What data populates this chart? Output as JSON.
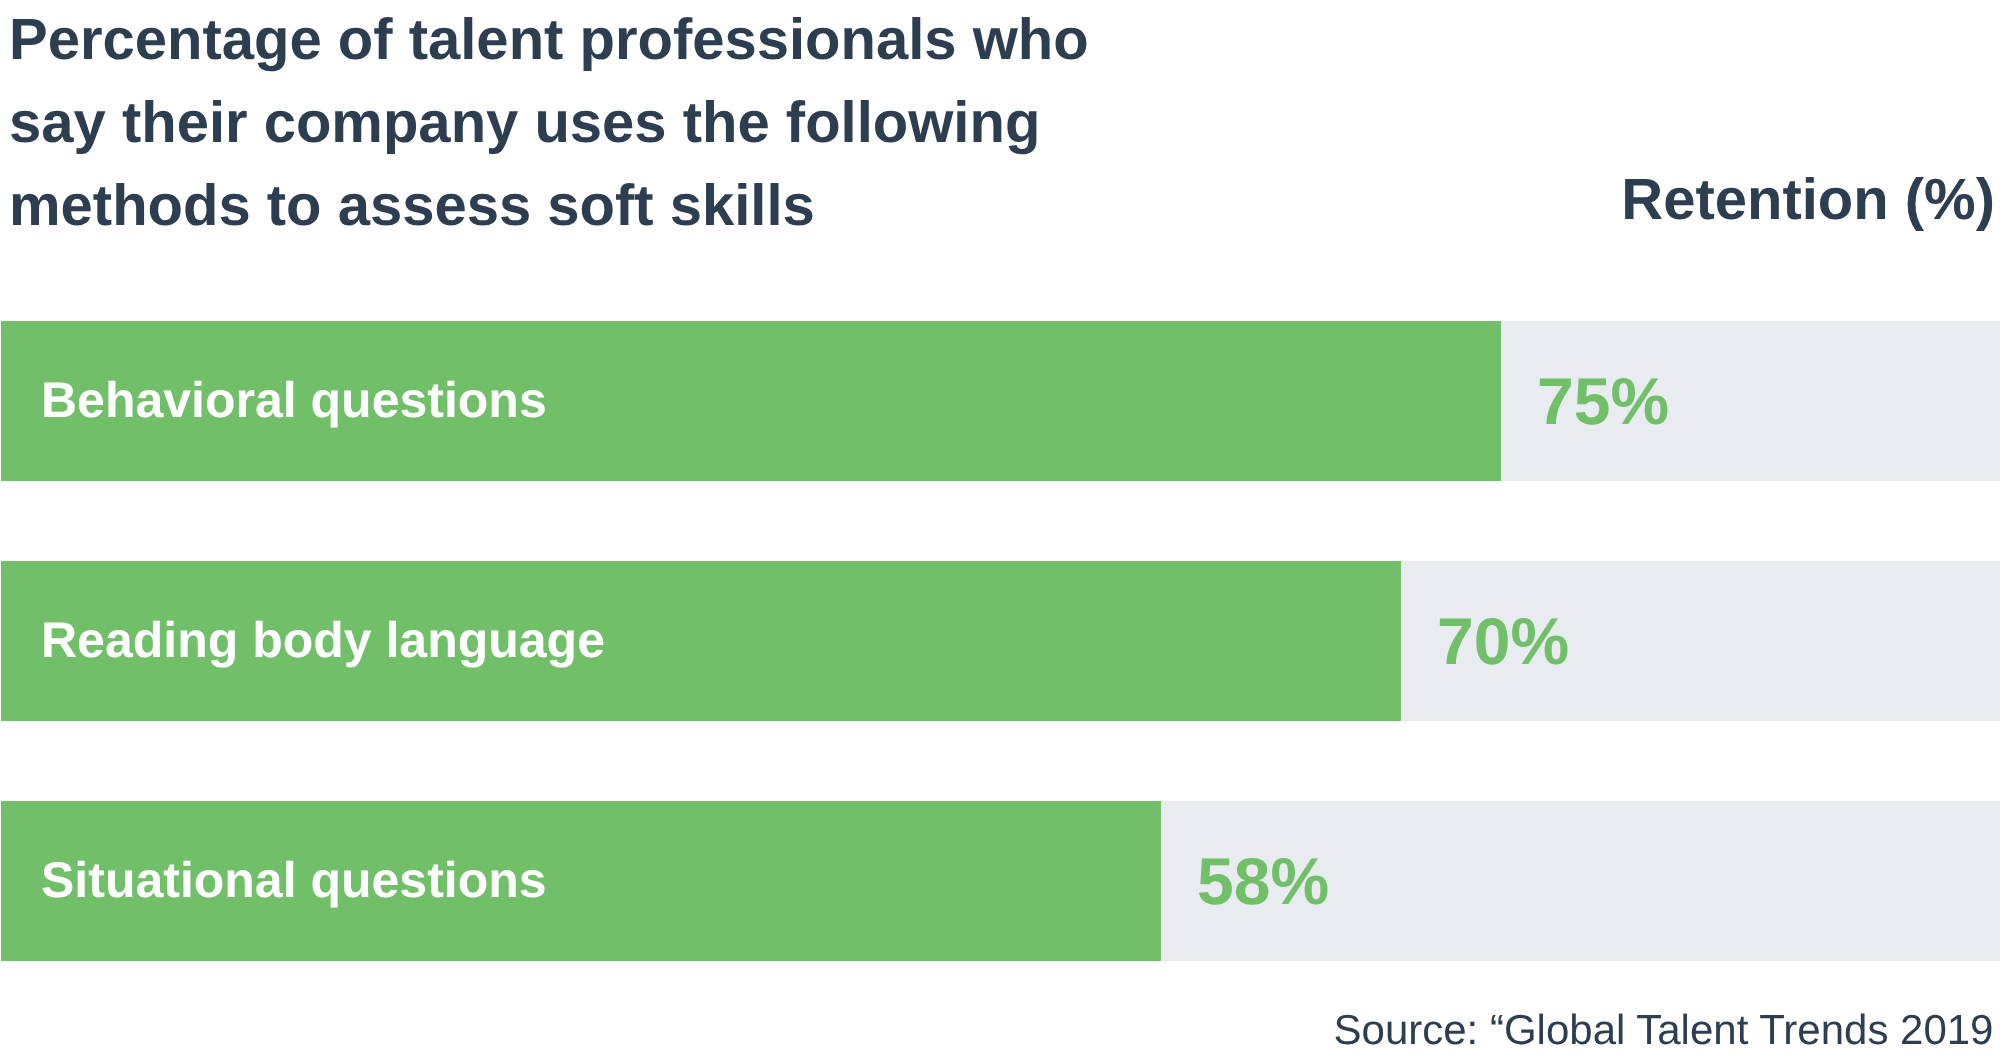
{
  "chart_data": {
    "type": "bar",
    "orientation": "horizontal",
    "title": "Percentage of talent professionals who\nsay their company uses the following\nmethods to assess soft skills",
    "xlabel": "Retention (%)",
    "categories": [
      "Behavioral questions",
      "Reading body language",
      "Situational questions"
    ],
    "xlim": [
      0,
      100
    ],
    "tick_labels": false,
    "series": [
      {
        "color": "#72bf6a",
        "values": [
          75,
          70,
          58
        ],
        "value_labels": [
          "75%",
          "70%",
          "58%"
        ]
      }
    ],
    "annotations": [
      "Source: “Global Talent Trends 2019"
    ]
  }
}
